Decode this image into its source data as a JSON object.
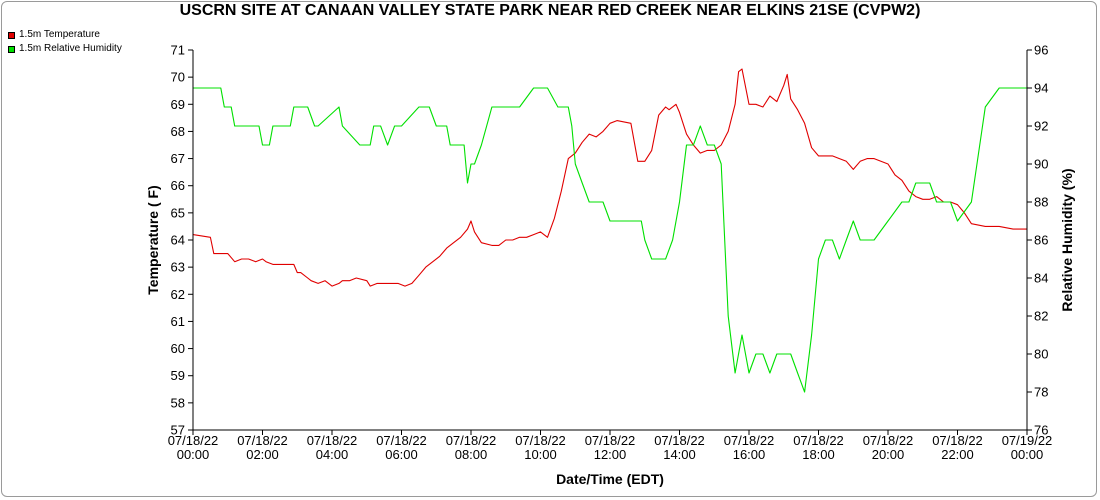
{
  "chart_data": {
    "type": "line",
    "title": "USCRN SITE AT CANAAN VALLEY STATE PARK NEAR RED CREEK NEAR ELKINS 21SE (CVPW2)",
    "xlabel": "Date/Time (EDT)",
    "ylabel": "Temperature ( F)",
    "y2label": "Relative Humidity (%)",
    "xlim": [
      0,
      24
    ],
    "ylim": [
      57,
      71
    ],
    "y2lim": [
      76,
      96
    ],
    "grid": false,
    "legend": "top-left",
    "x_ticks": [
      {
        "value": 0,
        "date": "07/18/22",
        "time": "00:00"
      },
      {
        "value": 2,
        "date": "07/18/22",
        "time": "02:00"
      },
      {
        "value": 4,
        "date": "07/18/22",
        "time": "04:00"
      },
      {
        "value": 6,
        "date": "07/18/22",
        "time": "06:00"
      },
      {
        "value": 8,
        "date": "07/18/22",
        "time": "08:00"
      },
      {
        "value": 10,
        "date": "07/18/22",
        "time": "10:00"
      },
      {
        "value": 12,
        "date": "07/18/22",
        "time": "12:00"
      },
      {
        "value": 14,
        "date": "07/18/22",
        "time": "14:00"
      },
      {
        "value": 16,
        "date": "07/18/22",
        "time": "16:00"
      },
      {
        "value": 18,
        "date": "07/18/22",
        "time": "18:00"
      },
      {
        "value": 20,
        "date": "07/18/22",
        "time": "20:00"
      },
      {
        "value": 22,
        "date": "07/18/22",
        "time": "22:00"
      },
      {
        "value": 24,
        "date": "07/19/22",
        "time": "00:00"
      }
    ],
    "y_ticks": [
      "57",
      "58",
      "59",
      "60",
      "61",
      "62",
      "63",
      "64",
      "65",
      "66",
      "67",
      "68",
      "69",
      "70",
      "71"
    ],
    "y2_ticks": [
      "76",
      "78",
      "80",
      "82",
      "84",
      "86",
      "88",
      "90",
      "92",
      "94",
      "96"
    ],
    "series": [
      {
        "name": "1.5m Temperature",
        "color": "#e00000",
        "axis": "left",
        "x": [
          0.0,
          0.5,
          0.6,
          1.0,
          1.2,
          1.4,
          1.6,
          1.8,
          2.0,
          2.1,
          2.3,
          2.7,
          2.9,
          3.0,
          3.1,
          3.3,
          3.4,
          3.6,
          3.8,
          4.0,
          4.2,
          4.3,
          4.5,
          4.7,
          5.0,
          5.1,
          5.3,
          5.7,
          5.9,
          6.1,
          6.3,
          6.5,
          6.7,
          6.9,
          7.1,
          7.3,
          7.5,
          7.7,
          7.9,
          8.0,
          8.1,
          8.3,
          8.6,
          8.8,
          9.0,
          9.2,
          9.4,
          9.6,
          9.8,
          10.0,
          10.2,
          10.4,
          10.6,
          10.8,
          11.0,
          11.2,
          11.4,
          11.6,
          11.8,
          12.0,
          12.2,
          12.6,
          12.8,
          13.0,
          13.2,
          13.4,
          13.6,
          13.7,
          13.9,
          14.0,
          14.2,
          14.4,
          14.6,
          14.8,
          15.0,
          15.2,
          15.4,
          15.6,
          15.7,
          15.8,
          16.0,
          16.2,
          16.4,
          16.6,
          16.8,
          17.0,
          17.1,
          17.2,
          17.4,
          17.6,
          17.8,
          18.0,
          18.4,
          18.6,
          18.8,
          19.0,
          19.2,
          19.4,
          19.6,
          20.0,
          20.2,
          20.4,
          20.6,
          20.8,
          21.0,
          21.2,
          21.4,
          21.6,
          21.8,
          22.0,
          22.2,
          22.4,
          22.8,
          23.2,
          23.6,
          24.0
        ],
        "y": [
          64.2,
          64.1,
          63.5,
          63.5,
          63.2,
          63.3,
          63.3,
          63.2,
          63.3,
          63.2,
          63.1,
          63.1,
          63.1,
          62.8,
          62.8,
          62.6,
          62.5,
          62.4,
          62.5,
          62.3,
          62.4,
          62.5,
          62.5,
          62.6,
          62.5,
          62.3,
          62.4,
          62.4,
          62.4,
          62.3,
          62.4,
          62.7,
          63.0,
          63.2,
          63.4,
          63.7,
          63.9,
          64.1,
          64.4,
          64.7,
          64.3,
          63.9,
          63.8,
          63.8,
          64.0,
          64.0,
          64.1,
          64.1,
          64.2,
          64.3,
          64.1,
          64.8,
          65.8,
          67.0,
          67.2,
          67.6,
          67.9,
          67.8,
          68.0,
          68.3,
          68.4,
          68.3,
          66.9,
          66.9,
          67.3,
          68.6,
          68.9,
          68.8,
          69.0,
          68.7,
          67.9,
          67.5,
          67.2,
          67.3,
          67.3,
          67.5,
          68.0,
          69.0,
          70.2,
          70.3,
          69.0,
          69.0,
          68.9,
          69.3,
          69.1,
          69.7,
          70.1,
          69.2,
          68.8,
          68.3,
          67.4,
          67.1,
          67.1,
          67.0,
          66.9,
          66.6,
          66.9,
          67.0,
          67.0,
          66.8,
          66.4,
          66.2,
          65.8,
          65.6,
          65.5,
          65.5,
          65.6,
          65.4,
          65.4,
          65.3,
          65.0,
          64.6,
          64.5,
          64.5,
          64.4,
          64.4
        ]
      },
      {
        "name": "1.5m Relative Humidity",
        "color": "#00e000",
        "axis": "right",
        "x": [
          0.0,
          0.8,
          0.9,
          1.1,
          1.2,
          1.9,
          2.0,
          2.2,
          2.3,
          2.8,
          2.9,
          3.2,
          3.3,
          3.5,
          3.6,
          4.2,
          4.3,
          4.8,
          4.9,
          5.1,
          5.2,
          5.4,
          5.6,
          5.8,
          6.0,
          6.5,
          6.6,
          6.8,
          7.0,
          7.3,
          7.4,
          7.6,
          7.8,
          7.9,
          8.0,
          8.1,
          8.3,
          8.6,
          8.8,
          9.0,
          9.4,
          9.8,
          10.2,
          10.5,
          10.6,
          10.8,
          10.9,
          11.0,
          11.2,
          11.4,
          11.6,
          11.8,
          12.0,
          12.2,
          12.4,
          12.6,
          12.9,
          13.0,
          13.2,
          13.6,
          13.8,
          14.0,
          14.2,
          14.4,
          14.6,
          14.8,
          15.0,
          15.2,
          15.4,
          15.6,
          15.8,
          16.0,
          16.2,
          16.4,
          16.6,
          16.8,
          17.0,
          17.2,
          17.4,
          17.6,
          17.8,
          18.0,
          18.2,
          18.4,
          18.6,
          18.8,
          19.0,
          19.2,
          19.6,
          20.0,
          20.4,
          20.6,
          20.8,
          21.0,
          21.2,
          21.4,
          21.6,
          21.8,
          22.0,
          22.4,
          22.8,
          23.2,
          23.6,
          24.0
        ],
        "y": [
          94,
          94,
          93,
          93,
          92,
          92,
          91,
          91,
          92,
          92,
          93,
          93,
          93,
          92,
          92,
          93,
          92,
          91,
          91,
          91,
          92,
          92,
          91,
          92,
          92,
          93,
          93,
          93,
          92,
          92,
          91,
          91,
          91,
          89,
          90,
          90,
          91,
          93,
          93,
          93,
          93,
          94,
          94,
          93,
          93,
          93,
          92,
          90,
          89,
          88,
          88,
          88,
          87,
          87,
          87,
          87,
          87,
          86,
          85,
          85,
          86,
          88,
          91,
          91,
          92,
          91,
          91,
          90,
          82,
          79,
          81,
          79,
          80,
          80,
          79,
          80,
          80,
          80,
          79,
          78,
          81,
          85,
          86,
          86,
          85,
          86,
          87,
          86,
          86,
          87,
          88,
          88,
          89,
          89,
          89,
          88,
          88,
          88,
          87,
          88,
          93,
          94,
          94,
          94
        ]
      }
    ]
  }
}
